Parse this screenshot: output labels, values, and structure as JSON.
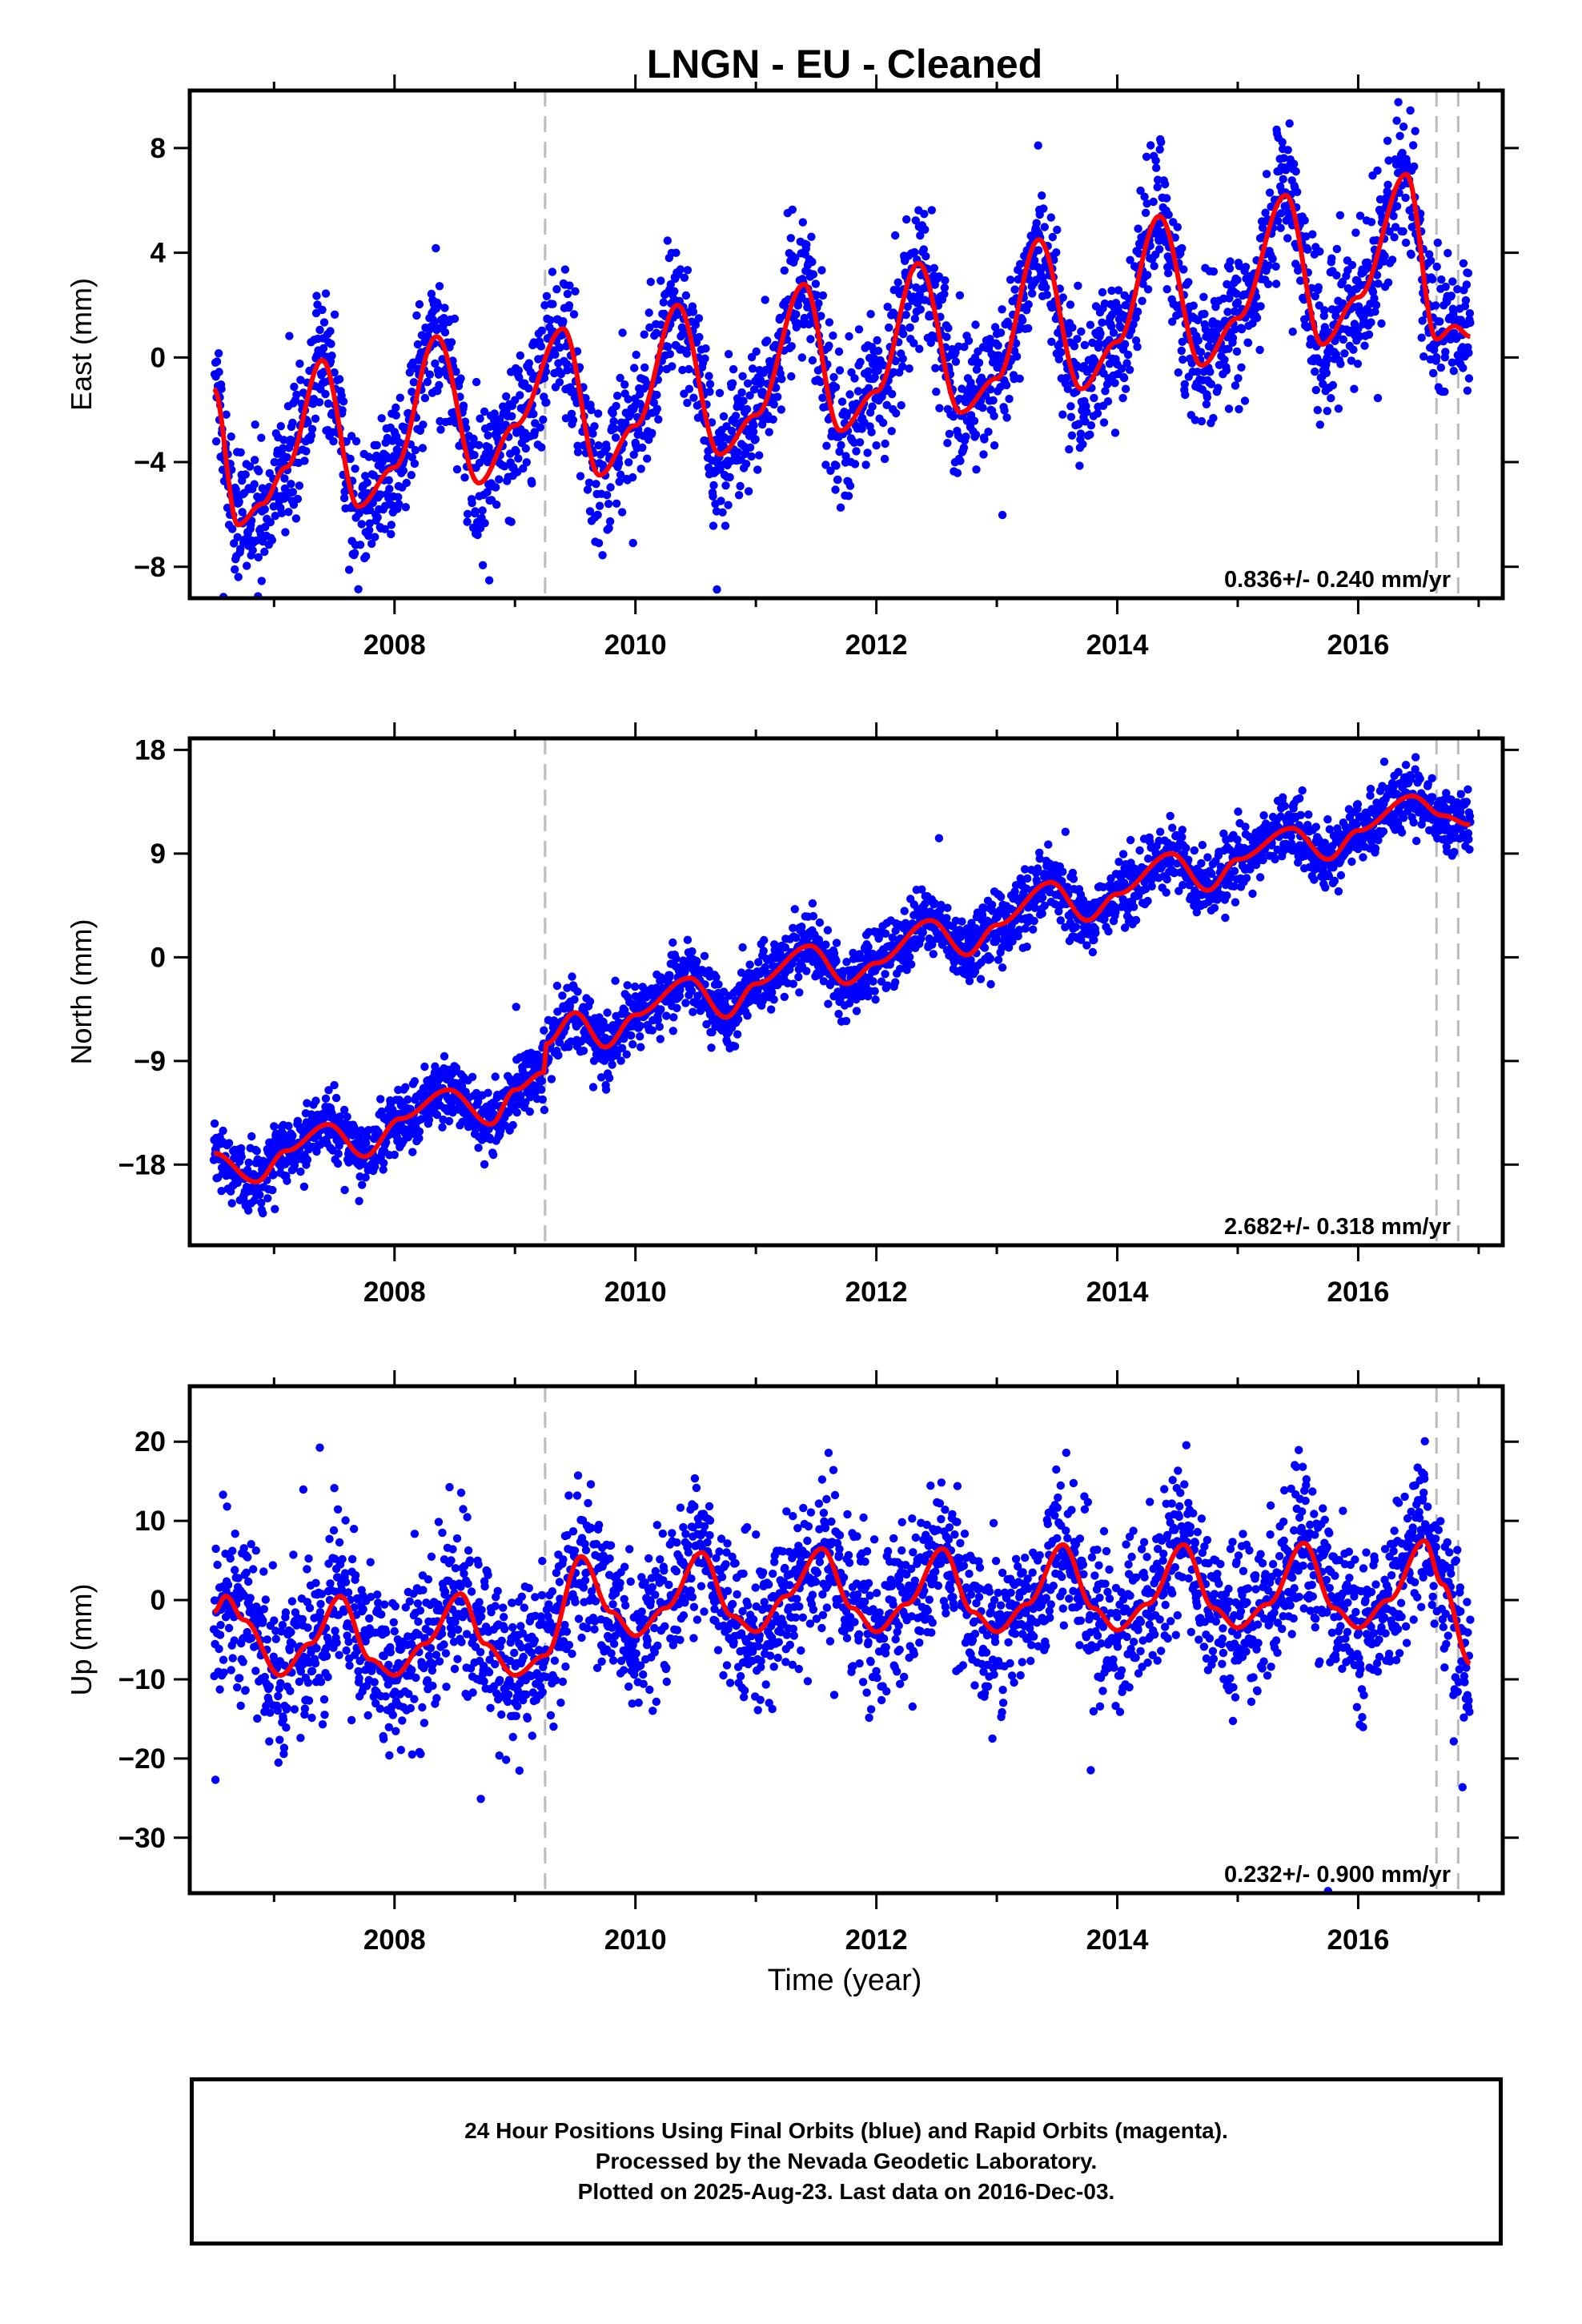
{
  "title": "LNGN  - EU - Cleaned",
  "xlabel": "Time (year)",
  "footer": [
    "24 Hour Positions Using Final Orbits (blue) and Rapid Orbits (magenta).",
    "Processed by the Nevada Geodetic Laboratory.",
    "Plotted on 2025-Aug-23. Last data on 2016-Dec-03."
  ],
  "colors": {
    "daily": "#0000ff",
    "model": "#ff0000",
    "event_lines": "#bbbbbb"
  },
  "chart_data": [
    {
      "type": "scatter",
      "ylabel": "East (mm)",
      "xlim": [
        2006.3,
        2017.2
      ],
      "ylim": [
        -9.2,
        10.2
      ],
      "xticks": [
        2008,
        2010,
        2012,
        2014,
        2016
      ],
      "yticks": [
        -8,
        -4,
        0,
        4,
        8
      ],
      "rate_label": "0.836+/- 0.240 mm/yr",
      "event_lines_x": [
        2009.25,
        2016.65,
        2016.83
      ],
      "data_span": [
        2006.5,
        2016.93
      ],
      "noise_sd": 1.35,
      "series": [
        {
          "style": "dots",
          "color": "#0000ff"
        },
        {
          "style": "line",
          "color": "#ff0000",
          "x": [
            2006.5,
            2006.7,
            2006.9,
            2007.1,
            2007.4,
            2007.7,
            2008.0,
            2008.35,
            2008.7,
            2009.0,
            2009.4,
            2009.7,
            2010.0,
            2010.35,
            2010.7,
            2011.0,
            2011.4,
            2011.7,
            2012.0,
            2012.35,
            2012.7,
            2013.0,
            2013.35,
            2013.7,
            2014.0,
            2014.35,
            2014.7,
            2015.0,
            2015.4,
            2015.7,
            2016.0,
            2016.4,
            2016.65,
            2016.8,
            2016.93
          ],
          "y": [
            -1.2,
            -6.4,
            -5.6,
            -4.2,
            -0.1,
            -5.7,
            -4.2,
            0.8,
            -4.8,
            -2.6,
            1.1,
            -4.5,
            -2.6,
            2.0,
            -3.7,
            -2.2,
            2.8,
            -2.8,
            -1.3,
            3.6,
            -2.1,
            -0.8,
            4.5,
            -1.2,
            0.6,
            5.4,
            -0.3,
            1.5,
            6.2,
            0.5,
            2.3,
            7.0,
            0.7,
            1.2,
            0.8
          ]
        }
      ]
    },
    {
      "type": "scatter",
      "ylabel": "North (mm)",
      "xlim": [
        2006.3,
        2017.2
      ],
      "ylim": [
        -25,
        19
      ],
      "xticks": [
        2008,
        2010,
        2012,
        2014,
        2016
      ],
      "yticks": [
        -18,
        -9,
        0,
        9,
        18
      ],
      "rate_label": "2.682+/- 0.318 mm/yr",
      "event_lines_x": [
        2009.25,
        2016.65,
        2016.83
      ],
      "data_span": [
        2006.5,
        2016.93
      ],
      "noise_sd": 1.4,
      "series": [
        {
          "style": "dots",
          "color": "#0000ff"
        },
        {
          "style": "line",
          "color": "#ff0000",
          "x": [
            2006.5,
            2006.85,
            2007.1,
            2007.45,
            2007.75,
            2008.05,
            2008.45,
            2008.8,
            2009.0,
            2009.24,
            2009.26,
            2009.5,
            2009.75,
            2010.0,
            2010.45,
            2010.75,
            2011.0,
            2011.45,
            2011.75,
            2012.0,
            2012.45,
            2012.75,
            2013.0,
            2013.45,
            2013.75,
            2014.0,
            2014.45,
            2014.75,
            2015.0,
            2015.45,
            2015.75,
            2016.0,
            2016.45,
            2016.7,
            2016.93
          ],
          "y": [
            -17,
            -19.5,
            -16.8,
            -14.5,
            -17.3,
            -14,
            -11.5,
            -14.5,
            -11.5,
            -10,
            -7.5,
            -4.8,
            -7.8,
            -5,
            -1.8,
            -5.2,
            -2.3,
            1.0,
            -2.3,
            -0.5,
            3.2,
            0.2,
            2.8,
            6.5,
            3.2,
            5.5,
            9.0,
            5.8,
            8.5,
            11.2,
            8.5,
            11.0,
            14.0,
            12.3,
            11.5
          ]
        }
      ]
    },
    {
      "type": "scatter",
      "ylabel": "Up (mm)",
      "xlim": [
        2006.3,
        2017.2
      ],
      "ylim": [
        -37,
        27
      ],
      "xticks": [
        2008,
        2010,
        2012,
        2014,
        2016
      ],
      "yticks": [
        -30,
        -20,
        -10,
        0,
        10,
        20
      ],
      "rate_label": "0.232+/- 0.900 mm/yr",
      "event_lines_x": [
        2009.25,
        2016.65,
        2016.83
      ],
      "data_span": [
        2006.5,
        2016.93
      ],
      "noise_sd": 5.0,
      "series": [
        {
          "style": "dots",
          "color": "#0000ff"
        },
        {
          "style": "line",
          "color": "#ff0000",
          "x": [
            2006.5,
            2006.6,
            2006.75,
            2007.05,
            2007.3,
            2007.55,
            2007.8,
            2008.0,
            2008.25,
            2008.55,
            2008.75,
            2009.0,
            2009.25,
            2009.55,
            2009.8,
            2010.0,
            2010.25,
            2010.55,
            2010.8,
            2011.0,
            2011.25,
            2011.55,
            2011.8,
            2012.0,
            2012.25,
            2012.55,
            2012.8,
            2013.0,
            2013.25,
            2013.55,
            2013.8,
            2014.0,
            2014.25,
            2014.55,
            2014.8,
            2015.0,
            2015.25,
            2015.55,
            2015.8,
            2016.0,
            2016.25,
            2016.55,
            2016.7,
            2016.93
          ],
          "y": [
            -1.5,
            0.5,
            -2.5,
            -9.5,
            -5.5,
            0.5,
            -7.5,
            -9.5,
            -5.5,
            0.8,
            -5.5,
            -9.5,
            -7.0,
            5.5,
            -1.5,
            -4.5,
            -1.0,
            6.0,
            -2.0,
            -4.0,
            0.5,
            6.5,
            -1.0,
            -4.0,
            -0.5,
            6.5,
            -1.5,
            -4.0,
            -0.5,
            7.0,
            -1.0,
            -3.8,
            -0.5,
            7.0,
            -1.0,
            -3.5,
            -0.5,
            7.2,
            -1.0,
            -3.5,
            0.0,
            7.5,
            2.0,
            -8.0
          ]
        }
      ]
    }
  ]
}
